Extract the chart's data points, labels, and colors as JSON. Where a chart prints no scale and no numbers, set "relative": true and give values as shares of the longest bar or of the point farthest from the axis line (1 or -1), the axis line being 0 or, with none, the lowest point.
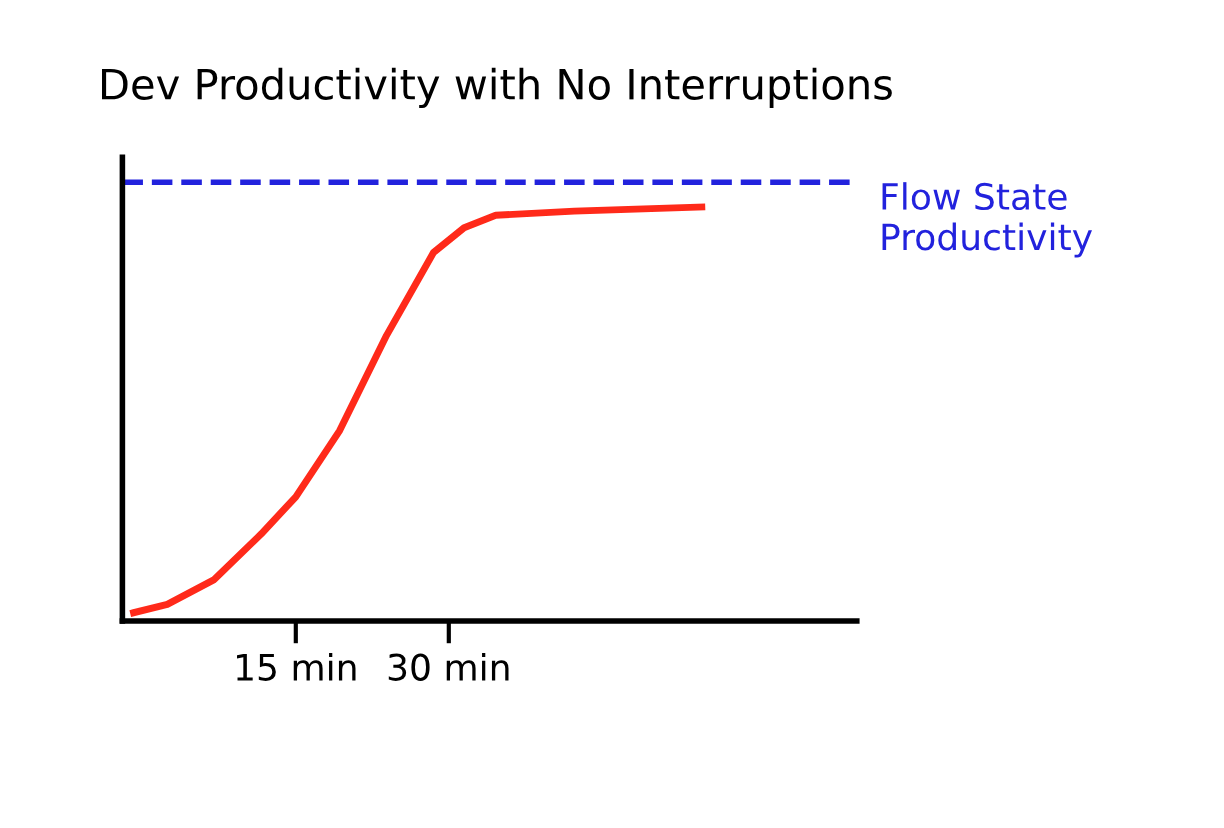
{
  "chart_data": {
    "type": "line",
    "title": "Dev Productivity with No Interruptions",
    "relative": true,
    "tick_labels": "x",
    "x": [
      -0.9,
      2.4,
      7.0,
      11.6,
      15,
      19.3,
      23.9,
      28.5,
      31.5,
      34.6,
      42.3,
      54.8
    ],
    "series": [
      {
        "color": "#ff2a1a",
        "values": [
          0.02,
          0.04,
          0.1,
          0.21,
          0.3,
          0.46,
          0.69,
          0.89,
          0.95,
          0.98,
          0.99,
          1.0
        ]
      }
    ],
    "xlim": [
      -2,
      70
    ],
    "xticks": [
      {
        "value": 15,
        "label": "15 min"
      },
      {
        "value": 30,
        "label": "30 min"
      }
    ],
    "ref_lines": [
      {
        "axis": "y",
        "value": 1.06,
        "label": "Flow State\nProductivity",
        "color": "#2222dd",
        "line_style": "dashed"
      }
    ],
    "marker": "none",
    "line_style": "solid"
  }
}
